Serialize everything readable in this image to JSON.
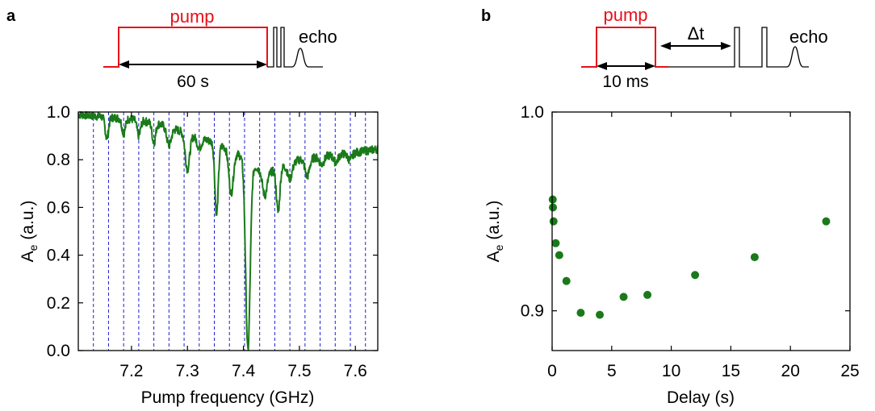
{
  "panels": {
    "a": {
      "letter": "a",
      "pulse": {
        "pump_label": "pump",
        "echo_label": "echo",
        "duration_label": "60 s"
      }
    },
    "b": {
      "letter": "b",
      "pulse": {
        "pump_label": "pump",
        "echo_label": "echo",
        "duration_label": "10 ms",
        "delay_label": "Δt"
      }
    }
  },
  "colors": {
    "pump": "#e8101a",
    "data": "#1a7a1a",
    "gridline": "#1f1fd0"
  },
  "chart_data": [
    {
      "id": "a",
      "type": "line",
      "xlabel": "Pump frequency (GHz)",
      "ylabel_main": "A",
      "ylabel_sub": "e",
      "ylabel_rest": " (a.u.)",
      "xlim": [
        7.105,
        7.64
      ],
      "ylim": [
        0,
        1.0
      ],
      "xticks": [
        7.2,
        7.3,
        7.4,
        7.5,
        7.6
      ],
      "xtick_labels": [
        "7.2",
        "7.3",
        "7.4",
        "7.5",
        "7.6"
      ],
      "yticks": [
        0.0,
        0.2,
        0.4,
        0.6,
        0.8,
        1.0
      ],
      "ytick_labels": [
        "0.0",
        "0.2",
        "0.4",
        "0.6",
        "0.8",
        "1.0"
      ],
      "vlines": [
        7.132,
        7.159,
        7.186,
        7.213,
        7.24,
        7.267,
        7.294,
        7.321,
        7.348,
        7.375,
        7.402,
        7.429,
        7.456,
        7.483,
        7.51,
        7.537,
        7.564,
        7.591,
        7.618
      ],
      "baseline": [
        [
          7.105,
          0.99
        ],
        [
          7.15,
          0.98
        ],
        [
          7.2,
          0.97
        ],
        [
          7.25,
          0.95
        ],
        [
          7.3,
          0.91
        ],
        [
          7.35,
          0.87
        ],
        [
          7.38,
          0.84
        ],
        [
          7.41,
          0.79
        ],
        [
          7.44,
          0.74
        ],
        [
          7.47,
          0.77
        ],
        [
          7.5,
          0.8
        ],
        [
          7.53,
          0.81
        ],
        [
          7.56,
          0.82
        ],
        [
          7.6,
          0.83
        ],
        [
          7.64,
          0.845
        ]
      ],
      "dips": [
        {
          "x": 7.156,
          "y": 0.89,
          "w": 0.003
        },
        {
          "x": 7.186,
          "y": 0.91,
          "w": 0.003
        },
        {
          "x": 7.213,
          "y": 0.9,
          "w": 0.003
        },
        {
          "x": 7.24,
          "y": 0.87,
          "w": 0.003
        },
        {
          "x": 7.267,
          "y": 0.86,
          "w": 0.004
        },
        {
          "x": 7.3,
          "y": 0.76,
          "w": 0.004
        },
        {
          "x": 7.321,
          "y": 0.85,
          "w": 0.004
        },
        {
          "x": 7.352,
          "y": 0.57,
          "w": 0.003
        },
        {
          "x": 7.378,
          "y": 0.66,
          "w": 0.004
        },
        {
          "x": 7.408,
          "y": 0.0,
          "w": 0.004
        },
        {
          "x": 7.438,
          "y": 0.65,
          "w": 0.004
        },
        {
          "x": 7.462,
          "y": 0.58,
          "w": 0.003
        },
        {
          "x": 7.483,
          "y": 0.72,
          "w": 0.004
        },
        {
          "x": 7.514,
          "y": 0.73,
          "w": 0.004
        },
        {
          "x": 7.54,
          "y": 0.78,
          "w": 0.004
        },
        {
          "x": 7.565,
          "y": 0.79,
          "w": 0.004
        },
        {
          "x": 7.59,
          "y": 0.8,
          "w": 0.004
        }
      ]
    },
    {
      "id": "b",
      "type": "scatter",
      "xlabel": "Delay (s)",
      "ylabel_main": "A",
      "ylabel_sub": "e",
      "ylabel_rest": " (a.u.)",
      "xlim": [
        0,
        25
      ],
      "ylim": [
        0.88,
        1.0
      ],
      "xticks": [
        0,
        5,
        10,
        15,
        20,
        25
      ],
      "xtick_labels": [
        "0",
        "5",
        "10",
        "15",
        "20",
        "25"
      ],
      "yticks": [
        0.9,
        1.0
      ],
      "ytick_labels": [
        "0.9",
        "1.0"
      ],
      "points": [
        [
          0.05,
          0.956
        ],
        [
          0.07,
          0.952
        ],
        [
          0.12,
          0.945
        ],
        [
          0.3,
          0.934
        ],
        [
          0.6,
          0.928
        ],
        [
          1.2,
          0.915
        ],
        [
          2.4,
          0.899
        ],
        [
          4.0,
          0.898
        ],
        [
          6.0,
          0.907
        ],
        [
          8.0,
          0.908
        ],
        [
          12.0,
          0.918
        ],
        [
          17.0,
          0.927
        ],
        [
          23.0,
          0.945
        ]
      ]
    }
  ]
}
